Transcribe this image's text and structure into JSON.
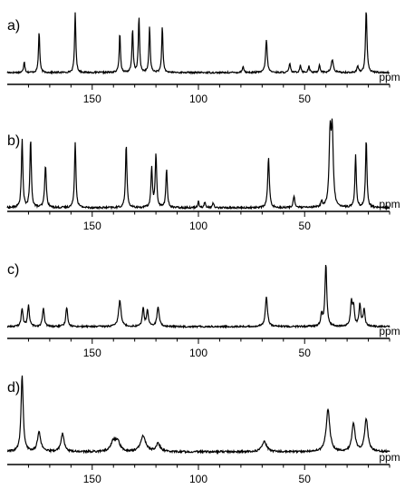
{
  "chart_data": [
    {
      "type": "line",
      "panel_label": "a)",
      "xlabel": "ppm",
      "xlim": [
        190,
        10
      ],
      "reversed_x": true,
      "ticks": [
        150,
        100,
        50
      ],
      "tick_labels": [
        "150",
        "100",
        "50"
      ],
      "peaks": [
        {
          "ppm": 182,
          "height": 0.18,
          "width": 0.35
        },
        {
          "ppm": 175,
          "height": 0.65,
          "width": 0.35
        },
        {
          "ppm": 158,
          "height": 0.95,
          "width": 0.35
        },
        {
          "ppm": 137,
          "height": 0.62,
          "width": 0.35
        },
        {
          "ppm": 131,
          "height": 0.68,
          "width": 0.35
        },
        {
          "ppm": 128,
          "height": 0.88,
          "width": 0.35
        },
        {
          "ppm": 123,
          "height": 0.72,
          "width": 0.35
        },
        {
          "ppm": 117,
          "height": 0.72,
          "width": 0.35
        },
        {
          "ppm": 79,
          "height": 0.1,
          "width": 0.4
        },
        {
          "ppm": 68,
          "height": 0.52,
          "width": 0.45
        },
        {
          "ppm": 57,
          "height": 0.14,
          "width": 0.4
        },
        {
          "ppm": 52,
          "height": 0.12,
          "width": 0.4
        },
        {
          "ppm": 48,
          "height": 0.1,
          "width": 0.4
        },
        {
          "ppm": 43,
          "height": 0.12,
          "width": 0.4
        },
        {
          "ppm": 37,
          "height": 0.2,
          "width": 0.6
        },
        {
          "ppm": 25,
          "height": 0.1,
          "width": 0.4
        },
        {
          "ppm": 21,
          "height": 1.0,
          "width": 0.4
        }
      ]
    },
    {
      "type": "line",
      "panel_label": "b)",
      "xlabel": "ppm",
      "xlim": [
        190,
        10
      ],
      "reversed_x": true,
      "ticks": [
        150,
        100,
        50
      ],
      "tick_labels": [
        "150",
        "100",
        "50"
      ],
      "peaks": [
        {
          "ppm": 183,
          "height": 0.88,
          "width": 0.4
        },
        {
          "ppm": 179,
          "height": 0.88,
          "width": 0.4
        },
        {
          "ppm": 172,
          "height": 0.55,
          "width": 0.45
        },
        {
          "ppm": 158,
          "height": 0.85,
          "width": 0.4
        },
        {
          "ppm": 134,
          "height": 0.82,
          "width": 0.4
        },
        {
          "ppm": 122,
          "height": 0.52,
          "width": 0.4
        },
        {
          "ppm": 120,
          "height": 0.7,
          "width": 0.4
        },
        {
          "ppm": 115,
          "height": 0.5,
          "width": 0.4
        },
        {
          "ppm": 100,
          "height": 0.08,
          "width": 0.4
        },
        {
          "ppm": 97,
          "height": 0.07,
          "width": 0.4
        },
        {
          "ppm": 93,
          "height": 0.06,
          "width": 0.4
        },
        {
          "ppm": 67,
          "height": 0.65,
          "width": 0.45
        },
        {
          "ppm": 55,
          "height": 0.15,
          "width": 0.45
        },
        {
          "ppm": 42,
          "height": 0.08,
          "width": 0.4
        },
        {
          "ppm": 38,
          "height": 0.92,
          "width": 0.55
        },
        {
          "ppm": 37,
          "height": 0.92,
          "width": 0.55
        },
        {
          "ppm": 26,
          "height": 0.67,
          "width": 0.4
        },
        {
          "ppm": 21,
          "height": 0.88,
          "width": 0.4
        }
      ]
    },
    {
      "type": "line",
      "panel_label": "c)",
      "xlabel": "ppm",
      "xlim": [
        190,
        10
      ],
      "reversed_x": true,
      "ticks": [
        150,
        100,
        50
      ],
      "tick_labels": [
        "150",
        "100",
        "50"
      ],
      "peaks": [
        {
          "ppm": 183,
          "height": 0.28,
          "width": 0.5
        },
        {
          "ppm": 180,
          "height": 0.32,
          "width": 0.5
        },
        {
          "ppm": 173,
          "height": 0.28,
          "width": 0.5
        },
        {
          "ppm": 162,
          "height": 0.3,
          "width": 0.5
        },
        {
          "ppm": 137,
          "height": 0.4,
          "width": 0.7
        },
        {
          "ppm": 126,
          "height": 0.28,
          "width": 0.5
        },
        {
          "ppm": 124,
          "height": 0.25,
          "width": 0.5
        },
        {
          "ppm": 119,
          "height": 0.3,
          "width": 0.6
        },
        {
          "ppm": 68,
          "height": 0.46,
          "width": 0.6
        },
        {
          "ppm": 42,
          "height": 0.18,
          "width": 0.5
        },
        {
          "ppm": 40,
          "height": 0.96,
          "width": 0.5
        },
        {
          "ppm": 28,
          "height": 0.36,
          "width": 0.5
        },
        {
          "ppm": 27,
          "height": 0.3,
          "width": 0.5
        },
        {
          "ppm": 24,
          "height": 0.34,
          "width": 0.5
        },
        {
          "ppm": 22,
          "height": 0.26,
          "width": 0.5
        }
      ]
    },
    {
      "type": "line",
      "panel_label": "d)",
      "xlabel": "ppm",
      "xlim": [
        190,
        10
      ],
      "reversed_x": true,
      "ticks": [
        150,
        100,
        50
      ],
      "tick_labels": [
        "150",
        "100",
        "50"
      ],
      "peaks": [
        {
          "ppm": 183,
          "height": 0.98,
          "width": 0.6
        },
        {
          "ppm": 175,
          "height": 0.25,
          "width": 0.9
        },
        {
          "ppm": 164,
          "height": 0.23,
          "width": 0.9
        },
        {
          "ppm": 140,
          "height": 0.13,
          "width": 1.4
        },
        {
          "ppm": 138,
          "height": 0.12,
          "width": 1.2
        },
        {
          "ppm": 126,
          "height": 0.2,
          "width": 1.4
        },
        {
          "ppm": 119,
          "height": 0.1,
          "width": 1.2
        },
        {
          "ppm": 69,
          "height": 0.13,
          "width": 1.3
        },
        {
          "ppm": 39,
          "height": 0.55,
          "width": 1.0
        },
        {
          "ppm": 27,
          "height": 0.36,
          "width": 0.9
        },
        {
          "ppm": 21,
          "height": 0.42,
          "width": 0.9
        }
      ]
    }
  ]
}
